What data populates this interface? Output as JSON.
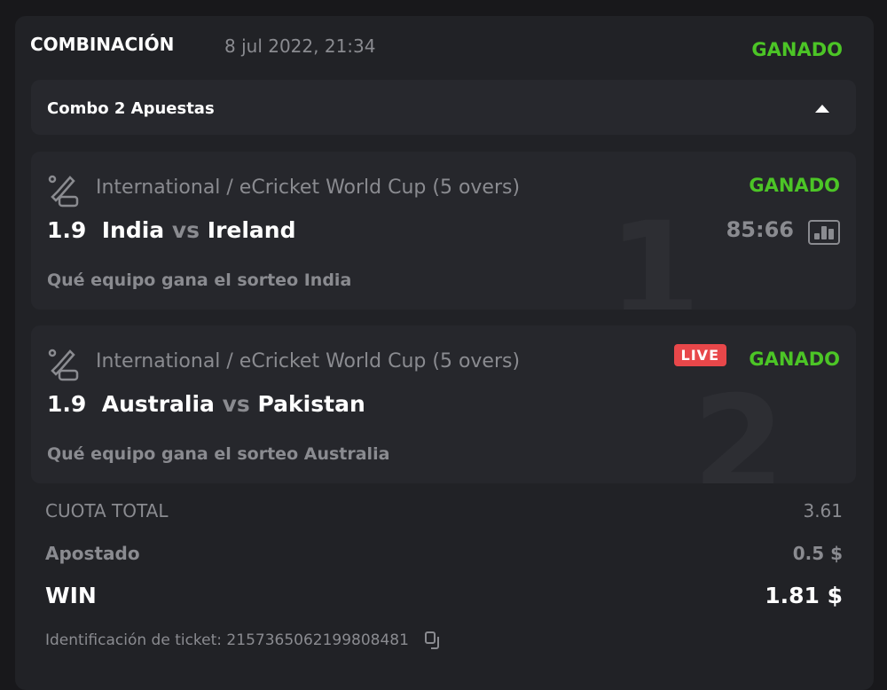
{
  "header": {
    "title": "COMBINACIÓN",
    "date": "8 jul 2022, 21:34",
    "status": "GANADO"
  },
  "combo": {
    "label": "Combo 2 Apuestas",
    "icon": "caret-up-icon"
  },
  "legs": [
    {
      "index": "1",
      "league": "International / eCricket World Cup (5 overs)",
      "status": "GANADO",
      "odds": "1.9",
      "home": "India",
      "vs": "vs",
      "away": "Ireland",
      "score": "85:66",
      "market": "Qué equipo gana el sorteo India"
    },
    {
      "index": "2",
      "league": "International / eCricket World Cup (5 overs)",
      "status": "GANADO",
      "live": "LIVE",
      "odds": "1.9",
      "home": "Australia",
      "vs": "vs",
      "away": "Pakistan",
      "market": "Qué equipo gana el sorteo Australia"
    }
  ],
  "summary": {
    "total_odds_label": "CUOTA TOTAL",
    "total_odds": "3.61",
    "stake_label": "Apostado",
    "stake": "0.5 $",
    "win_label": "WIN",
    "win": "1.81 $"
  },
  "ticket": {
    "label": "Identificación de ticket: 215736506219980848​1"
  },
  "colors": {
    "won": "#4cc526",
    "live": "#e8474a",
    "card": "#212226"
  }
}
